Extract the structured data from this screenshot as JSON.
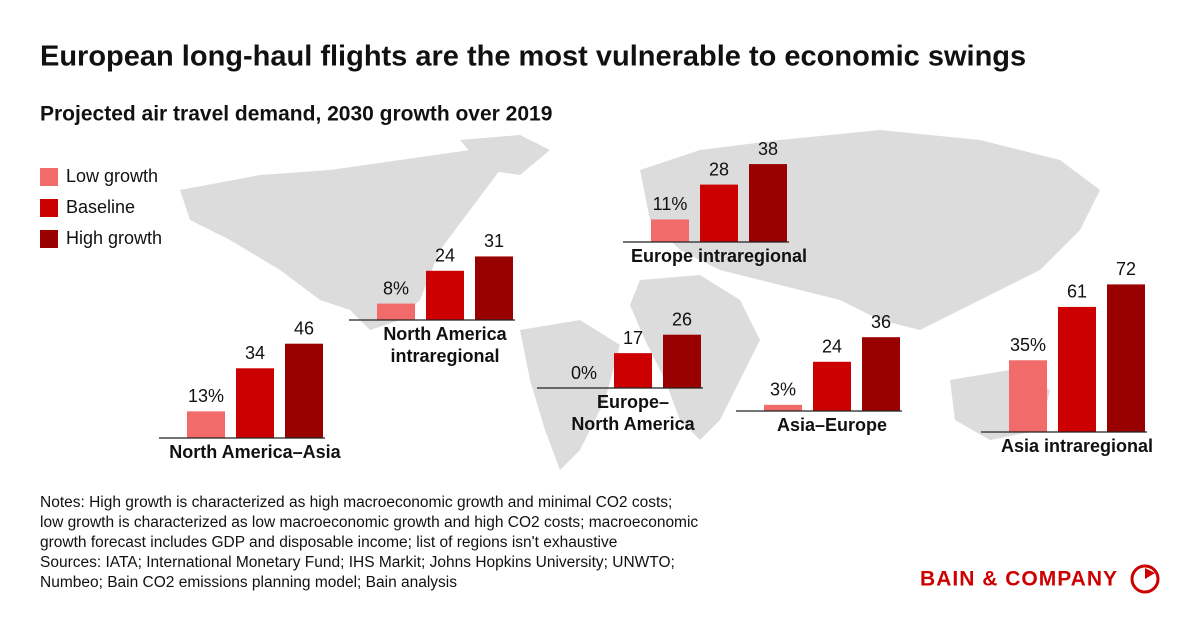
{
  "title": "European long-haul flights are the most vulnerable to economic swings",
  "subtitle": "Projected air travel demand, 2030 growth over 2019",
  "legend": [
    {
      "name": "Low growth",
      "color": "#f26b6b"
    },
    {
      "name": "Baseline",
      "color": "#cc0000"
    },
    {
      "name": "High growth",
      "color": "#990000"
    }
  ],
  "chart_data": [
    {
      "type": "bar",
      "title": [
        "North America–Asia"
      ],
      "values": [
        13,
        34,
        46
      ],
      "value_labels": [
        "13%",
        "34",
        "46"
      ]
    },
    {
      "type": "bar",
      "title": [
        "North America",
        "intraregional"
      ],
      "values": [
        8,
        24,
        31
      ],
      "value_labels": [
        "8%",
        "24",
        "31"
      ]
    },
    {
      "type": "bar",
      "title": [
        "Europe intraregional"
      ],
      "values": [
        11,
        28,
        38
      ],
      "value_labels": [
        "11%",
        "28",
        "38"
      ]
    },
    {
      "type": "bar",
      "title": [
        "Europe–",
        "North America"
      ],
      "values": [
        0,
        17,
        26
      ],
      "value_labels": [
        "0%",
        "17",
        "26"
      ]
    },
    {
      "type": "bar",
      "title": [
        "Asia–Europe"
      ],
      "values": [
        3,
        24,
        36
      ],
      "value_labels": [
        "3%",
        "24",
        "36"
      ]
    },
    {
      "type": "bar",
      "title": [
        "Asia intraregional"
      ],
      "values": [
        35,
        61,
        72
      ],
      "value_labels": [
        "35%",
        "61",
        "72"
      ]
    }
  ],
  "notes": [
    "Notes: High growth is characterized as high macroeconomic growth and minimal CO2 costs;",
    "low growth is characterized as low macroeconomic growth and high CO2 costs; macroeconomic",
    "growth forecast includes GDP and disposable income; list of regions isn't exhaustive",
    "Sources: IATA; International Monetary Fund; IHS Markit; Johns Hopkins University; UNWTO;",
    "Numbeo; Bain CO2 emissions planning model; Bain analysis"
  ],
  "brand": "BAIN & COMPANY"
}
